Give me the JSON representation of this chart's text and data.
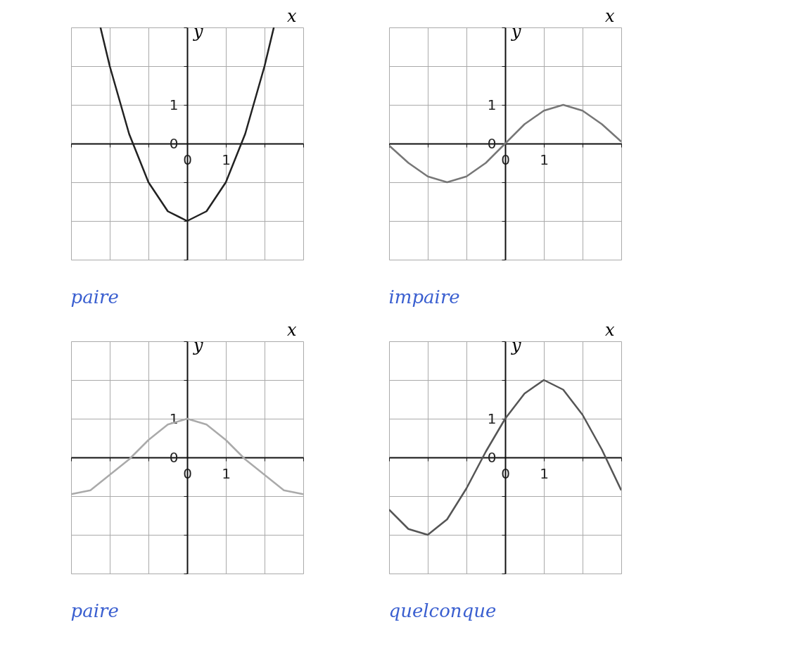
{
  "chart_data": [
    {
      "type": "line",
      "xlabel": "x",
      "ylabel": "y",
      "xlim": [
        -3,
        3
      ],
      "ylim": [
        -3,
        3
      ],
      "grid": true,
      "annotations": [
        "paire"
      ],
      "xticks": [
        {
          "value": -3,
          "label": null
        },
        {
          "value": -2,
          "label": null
        },
        {
          "value": -1,
          "label": null
        },
        0,
        1,
        {
          "value": 2,
          "label": null
        },
        {
          "value": 3,
          "label": null
        }
      ],
      "yticks": [
        {
          "value": -3,
          "label": null
        },
        {
          "value": -2,
          "label": null
        },
        {
          "value": -1,
          "label": null
        },
        0,
        1,
        {
          "value": 2,
          "label": null
        },
        {
          "value": 3,
          "label": null
        }
      ],
      "series": [
        {
          "color": "#222222",
          "x": [
            -2.24,
            -2,
            -1.5,
            -1,
            -0.5,
            0,
            0.5,
            1,
            1.5,
            2,
            2.24
          ],
          "values": [
            3,
            2,
            0.25,
            -1,
            -1.75,
            -2,
            -1.75,
            -1,
            0.25,
            2,
            3
          ]
        }
      ]
    },
    {
      "type": "line",
      "xlabel": "x",
      "ylabel": "y",
      "xlim": [
        -3,
        3
      ],
      "ylim": [
        -3,
        3
      ],
      "grid": true,
      "annotations": [
        "impaire"
      ],
      "xticks": [
        {
          "value": -3,
          "label": null
        },
        {
          "value": -2,
          "label": null
        },
        {
          "value": -1,
          "label": null
        },
        0,
        1,
        {
          "value": 2,
          "label": null
        },
        {
          "value": 3,
          "label": null
        }
      ],
      "yticks": [
        {
          "value": -3,
          "label": null
        },
        {
          "value": -2,
          "label": null
        },
        {
          "value": -1,
          "label": null
        },
        0,
        1,
        {
          "value": 2,
          "label": null
        },
        {
          "value": 3,
          "label": null
        }
      ],
      "series": [
        {
          "color": "#777777",
          "x": [
            -3,
            -2.5,
            -2,
            -1.5,
            -1,
            -0.5,
            0,
            0.5,
            1,
            1.5,
            2,
            2.5,
            3
          ],
          "values": [
            -0.05,
            -0.5,
            -0.85,
            -1,
            -0.85,
            -0.5,
            0,
            0.5,
            0.85,
            1,
            0.85,
            0.5,
            0.05
          ]
        }
      ]
    },
    {
      "type": "line",
      "xlabel": "x",
      "ylabel": "y",
      "xlim": [
        -3,
        3
      ],
      "ylim": [
        -3,
        3
      ],
      "grid": true,
      "annotations": [
        "paire"
      ],
      "xticks": [
        {
          "value": -3,
          "label": null
        },
        {
          "value": -2,
          "label": null
        },
        {
          "value": -1,
          "label": null
        },
        0,
        1,
        {
          "value": 2,
          "label": null
        },
        {
          "value": 3,
          "label": null
        }
      ],
      "yticks": [
        {
          "value": -3,
          "label": null
        },
        {
          "value": -2,
          "label": null
        },
        {
          "value": -1,
          "label": null
        },
        0,
        1,
        {
          "value": 2,
          "label": null
        },
        {
          "value": 3,
          "label": null
        }
      ],
      "series": [
        {
          "color": "#aaaaaa",
          "x": [
            -3,
            -2.5,
            -2,
            -1.5,
            -1,
            -0.5,
            0,
            0.5,
            1,
            1.5,
            2,
            2.5,
            3
          ],
          "values": [
            -0.95,
            -0.85,
            -0.45,
            -0.05,
            0.45,
            0.85,
            1,
            0.85,
            0.45,
            -0.05,
            -0.45,
            -0.85,
            -0.95
          ]
        }
      ]
    },
    {
      "type": "line",
      "xlabel": "x",
      "ylabel": "y",
      "xlim": [
        -3,
        3
      ],
      "ylim": [
        -3,
        3
      ],
      "grid": true,
      "annotations": [
        "quelconque"
      ],
      "xticks": [
        {
          "value": -3,
          "label": null
        },
        {
          "value": -2,
          "label": null
        },
        {
          "value": -1,
          "label": null
        },
        0,
        1,
        {
          "value": 2,
          "label": null
        },
        {
          "value": 3,
          "label": null
        }
      ],
      "yticks": [
        {
          "value": -3,
          "label": null
        },
        {
          "value": -2,
          "label": null
        },
        {
          "value": -1,
          "label": null
        },
        0,
        1,
        {
          "value": 2,
          "label": null
        },
        {
          "value": 3,
          "label": null
        }
      ],
      "series": [
        {
          "color": "#555555",
          "x": [
            -3,
            -2.5,
            -2,
            -1.5,
            -1,
            -0.5,
            0,
            0.5,
            1,
            1.5,
            2,
            2.5,
            3
          ],
          "values": [
            -1.35,
            -1.85,
            -2,
            -1.6,
            -0.8,
            0.15,
            1,
            1.65,
            2,
            1.75,
            1.1,
            0.2,
            -0.85
          ]
        }
      ]
    }
  ]
}
